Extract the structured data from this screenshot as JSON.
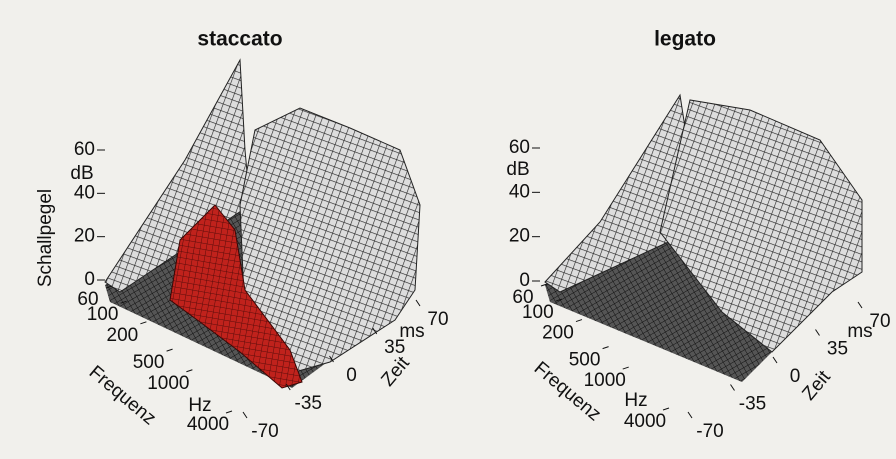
{
  "chart_data": [
    {
      "type": "surface",
      "title": "staccato",
      "x_label": "Frequenz",
      "x_unit": "Hz",
      "xlim": [
        60,
        4000
      ],
      "xticks": [
        60,
        100,
        200,
        500,
        1000,
        4000
      ],
      "xlog": true,
      "y_label": "Zeit",
      "y_unit": "ms",
      "ylim": [
        -70,
        70
      ],
      "yticks": [
        -70,
        -35,
        0,
        35,
        70
      ],
      "z_label": "Schallpegel",
      "z_unit": "dB",
      "zlim": [
        0,
        60
      ],
      "zticks": [
        0,
        20,
        40,
        60
      ],
      "color": "#b3201c"
    },
    {
      "type": "surface",
      "title": "legato",
      "x_label": "Frequenz",
      "x_unit": "Hz",
      "xlim": [
        60,
        4000
      ],
      "xticks": [
        60,
        100,
        200,
        500,
        1000,
        4000
      ],
      "xlog": true,
      "y_label": "Zeit",
      "y_unit": "ms",
      "ylim": [
        -70,
        70
      ],
      "yticks": [
        -70,
        -35,
        0,
        35,
        70
      ],
      "z_unit": "dB",
      "zlim": [
        0,
        60
      ],
      "zticks": [
        0,
        20,
        40,
        60
      ]
    }
  ]
}
